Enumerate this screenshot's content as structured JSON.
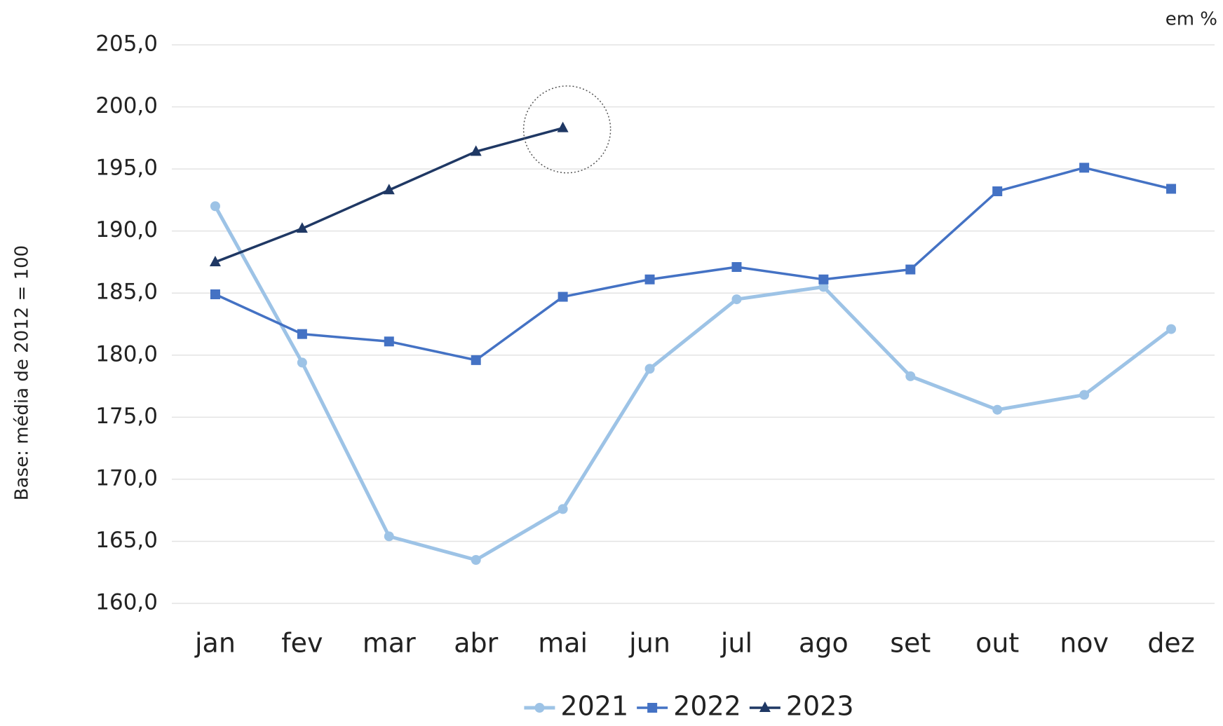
{
  "chart_data": {
    "type": "line",
    "unit_note": "em %",
    "y_label": "Base: média de 2012 = 100",
    "categories": [
      "jan",
      "fev",
      "mar",
      "abr",
      "mai",
      "jun",
      "jul",
      "ago",
      "set",
      "out",
      "nov",
      "dez"
    ],
    "series": [
      {
        "name": "2021",
        "color": "#9dc3e6",
        "marker": "circle",
        "values": [
          192.0,
          179.4,
          165.4,
          163.5,
          167.6,
          178.9,
          184.5,
          185.5,
          178.3,
          175.6,
          176.8,
          182.1
        ]
      },
      {
        "name": "2022",
        "color": "#4472c4",
        "marker": "square",
        "values": [
          184.9,
          181.7,
          181.1,
          179.6,
          184.7,
          186.1,
          187.1,
          186.1,
          186.9,
          193.2,
          195.1,
          193.4
        ]
      },
      {
        "name": "2023",
        "color": "#1f3864",
        "marker": "triangle",
        "values": [
          187.5,
          190.2,
          193.3,
          196.4,
          198.3,
          null,
          null,
          null,
          null,
          null,
          null,
          null
        ]
      }
    ],
    "ylim": [
      160,
      205
    ],
    "yticks": [
      {
        "value": 160,
        "label": "160,0"
      },
      {
        "value": 165,
        "label": "165,0"
      },
      {
        "value": 170,
        "label": "170,0"
      },
      {
        "value": 175,
        "label": "175,0"
      },
      {
        "value": 180,
        "label": "180,0"
      },
      {
        "value": 185,
        "label": "185,0"
      },
      {
        "value": 190,
        "label": "190,0"
      },
      {
        "value": 195,
        "label": "195,0"
      },
      {
        "value": 200,
        "label": "200,0"
      },
      {
        "value": 205,
        "label": "205,0"
      }
    ],
    "grid": true,
    "legend": "bottom"
  }
}
